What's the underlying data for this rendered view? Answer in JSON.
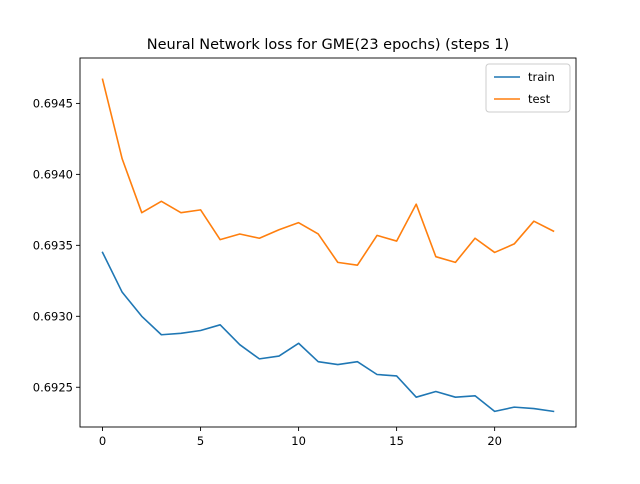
{
  "chart_data": {
    "type": "line",
    "title": "Neural Network loss for GME(23 epochs) (steps 1)",
    "xlabel": "",
    "ylabel": "",
    "xlim": [
      -1.15,
      24.15
    ],
    "ylim": [
      0.69222,
      0.69482
    ],
    "x_ticks": [
      0,
      5,
      10,
      15,
      20
    ],
    "x_tick_labels": [
      "0",
      "5",
      "10",
      "15",
      "20"
    ],
    "y_ticks": [
      0.6925,
      0.693,
      0.6935,
      0.694,
      0.6945
    ],
    "y_tick_labels": [
      "0.6925",
      "0.6930",
      "0.6935",
      "0.6940",
      "0.6945"
    ],
    "grid": false,
    "legend_position": "top-right",
    "x": [
      0,
      1,
      2,
      3,
      4,
      5,
      6,
      7,
      8,
      9,
      10,
      11,
      12,
      13,
      14,
      15,
      16,
      17,
      18,
      19,
      20,
      21,
      22,
      23
    ],
    "series": [
      {
        "name": "train",
        "color": "#1f77b4",
        "values": [
          0.69345,
          0.69317,
          0.693,
          0.69287,
          0.69288,
          0.6929,
          0.69294,
          0.6928,
          0.6927,
          0.69272,
          0.69281,
          0.69268,
          0.69266,
          0.69268,
          0.69259,
          0.69258,
          0.69243,
          0.69247,
          0.69243,
          0.69244,
          0.69233,
          0.69236,
          0.69235,
          0.69233
        ]
      },
      {
        "name": "test",
        "color": "#ff7f0e",
        "values": [
          0.69467,
          0.69411,
          0.69373,
          0.69381,
          0.69373,
          0.69375,
          0.69354,
          0.69358,
          0.69355,
          0.69361,
          0.69366,
          0.69358,
          0.69338,
          0.69336,
          0.69357,
          0.69353,
          0.69379,
          0.69342,
          0.69338,
          0.69355,
          0.69345,
          0.69351,
          0.69367,
          0.6936
        ]
      }
    ]
  }
}
